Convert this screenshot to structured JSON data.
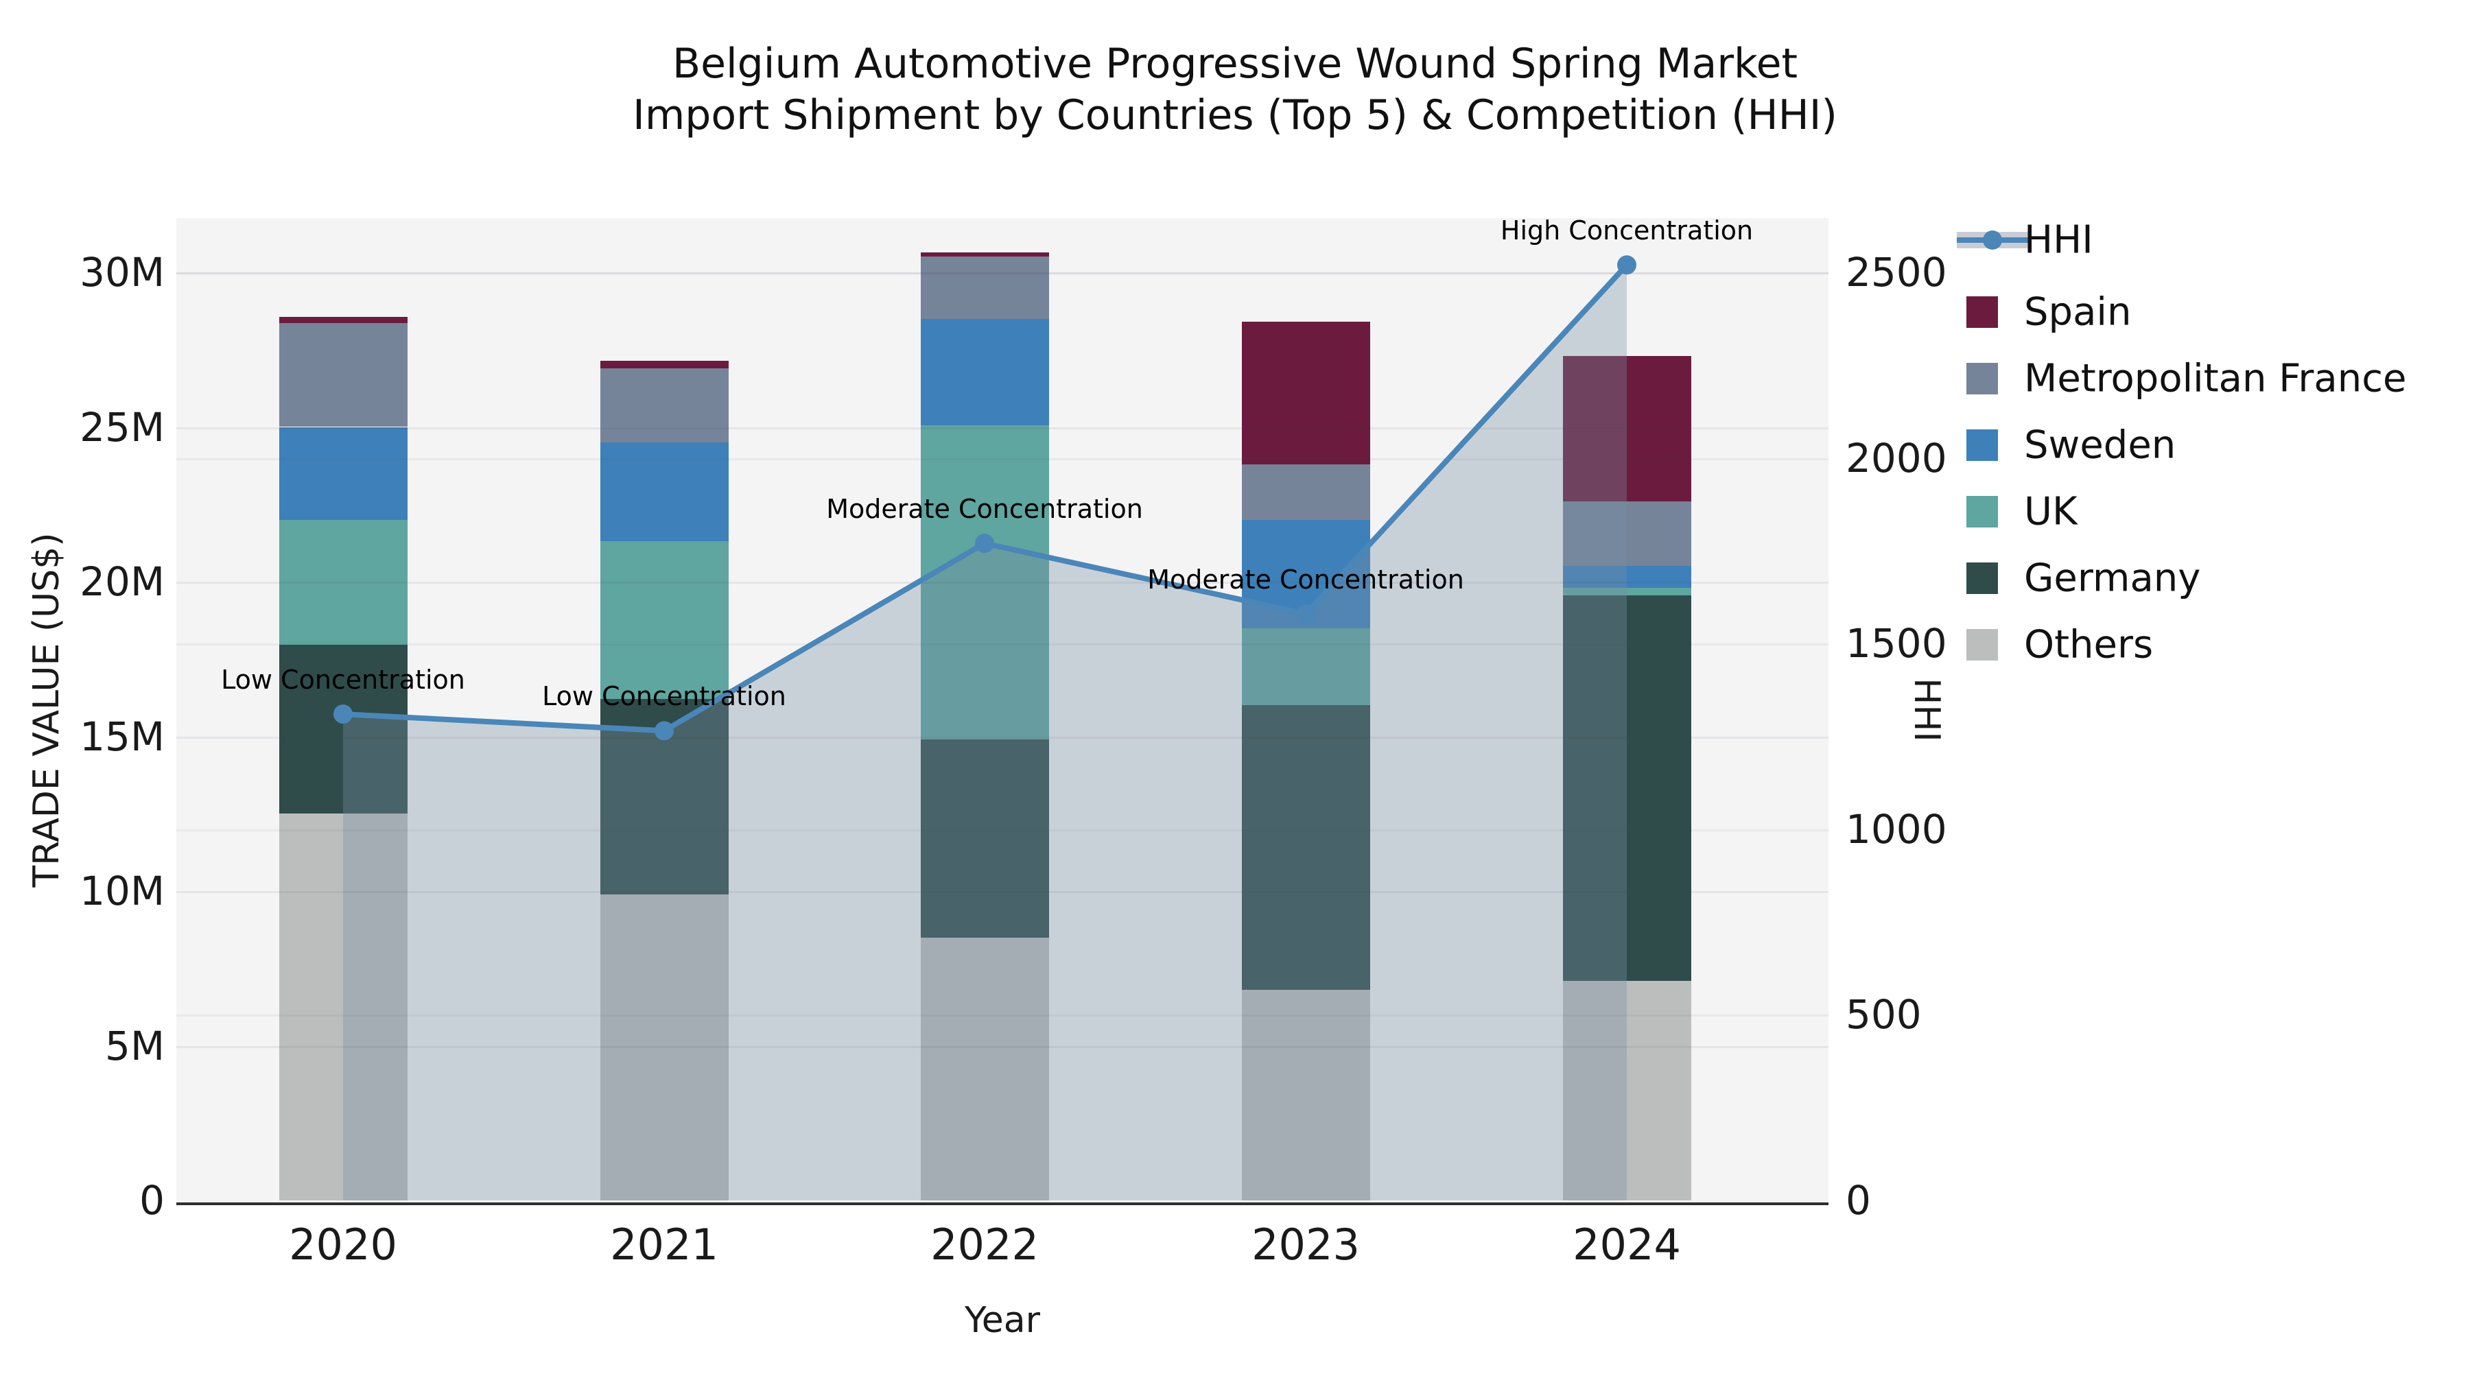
{
  "chart_data": {
    "type": "bar+line",
    "title_line1": "Belgium Automotive Progressive Wound Spring Market",
    "title_line2": "Import Shipment by Countries (Top 5) & Competition (HHI)",
    "xlabel": "Year",
    "ylabel_left": "TRADE VALUE (US$)",
    "ylabel_right": "HHI",
    "categories": [
      "2020",
      "2021",
      "2022",
      "2023",
      "2024"
    ],
    "stack_order_bottom_to_top": [
      "Others",
      "Germany",
      "UK",
      "Sweden",
      "Metropolitan France",
      "Spain"
    ],
    "series": [
      {
        "name": "Others",
        "color": "#BCBEBD",
        "values_musd": [
          12.5,
          9.9,
          8.5,
          6.8,
          7.1
        ]
      },
      {
        "name": "Germany",
        "color": "#2F4C4B",
        "values_musd": [
          5.45,
          6.3,
          6.4,
          9.2,
          12.45
        ]
      },
      {
        "name": "UK",
        "color": "#5FA5A0",
        "values_musd": [
          4.05,
          5.1,
          10.15,
          2.5,
          0.25
        ]
      },
      {
        "name": "Sweden",
        "color": "#3E80B9",
        "values_musd": [
          3.0,
          3.2,
          3.45,
          3.5,
          0.7
        ]
      },
      {
        "name": "Metropolitan France",
        "color": "#76849A",
        "values_musd": [
          3.35,
          2.4,
          2.0,
          1.8,
          2.1
        ]
      },
      {
        "name": "Spain",
        "color": "#6B1B3D",
        "values_musd": [
          0.2,
          0.25,
          0.15,
          4.6,
          4.7
        ]
      }
    ],
    "hhi": {
      "name": "HHI",
      "values": [
        1310,
        1265,
        1770,
        1580,
        2520
      ],
      "line_color": "#4A86B8",
      "area_color": "#798EA2",
      "area_opacity": 0.35,
      "annotations": [
        "Low Concentration",
        "Low Concentration",
        "Moderate Concentration",
        "Moderate Concentration",
        "High Concentration"
      ]
    },
    "y_left": {
      "ticks": [
        "0",
        "5M",
        "10M",
        "15M",
        "20M",
        "25M",
        "30M"
      ],
      "tick_values_musd": [
        0,
        5,
        10,
        15,
        20,
        25,
        30
      ]
    },
    "y_right": {
      "ticks": [
        "0",
        "500",
        "1000",
        "1500",
        "2000",
        "2500"
      ],
      "tick_values": [
        0,
        500,
        1000,
        1500,
        2000,
        2500
      ]
    },
    "legend_order": [
      "HHI",
      "Spain",
      "Metropolitan France",
      "Sweden",
      "UK",
      "Germany",
      "Others"
    ],
    "plot_background": "#F4F4F5",
    "grid": "on"
  }
}
